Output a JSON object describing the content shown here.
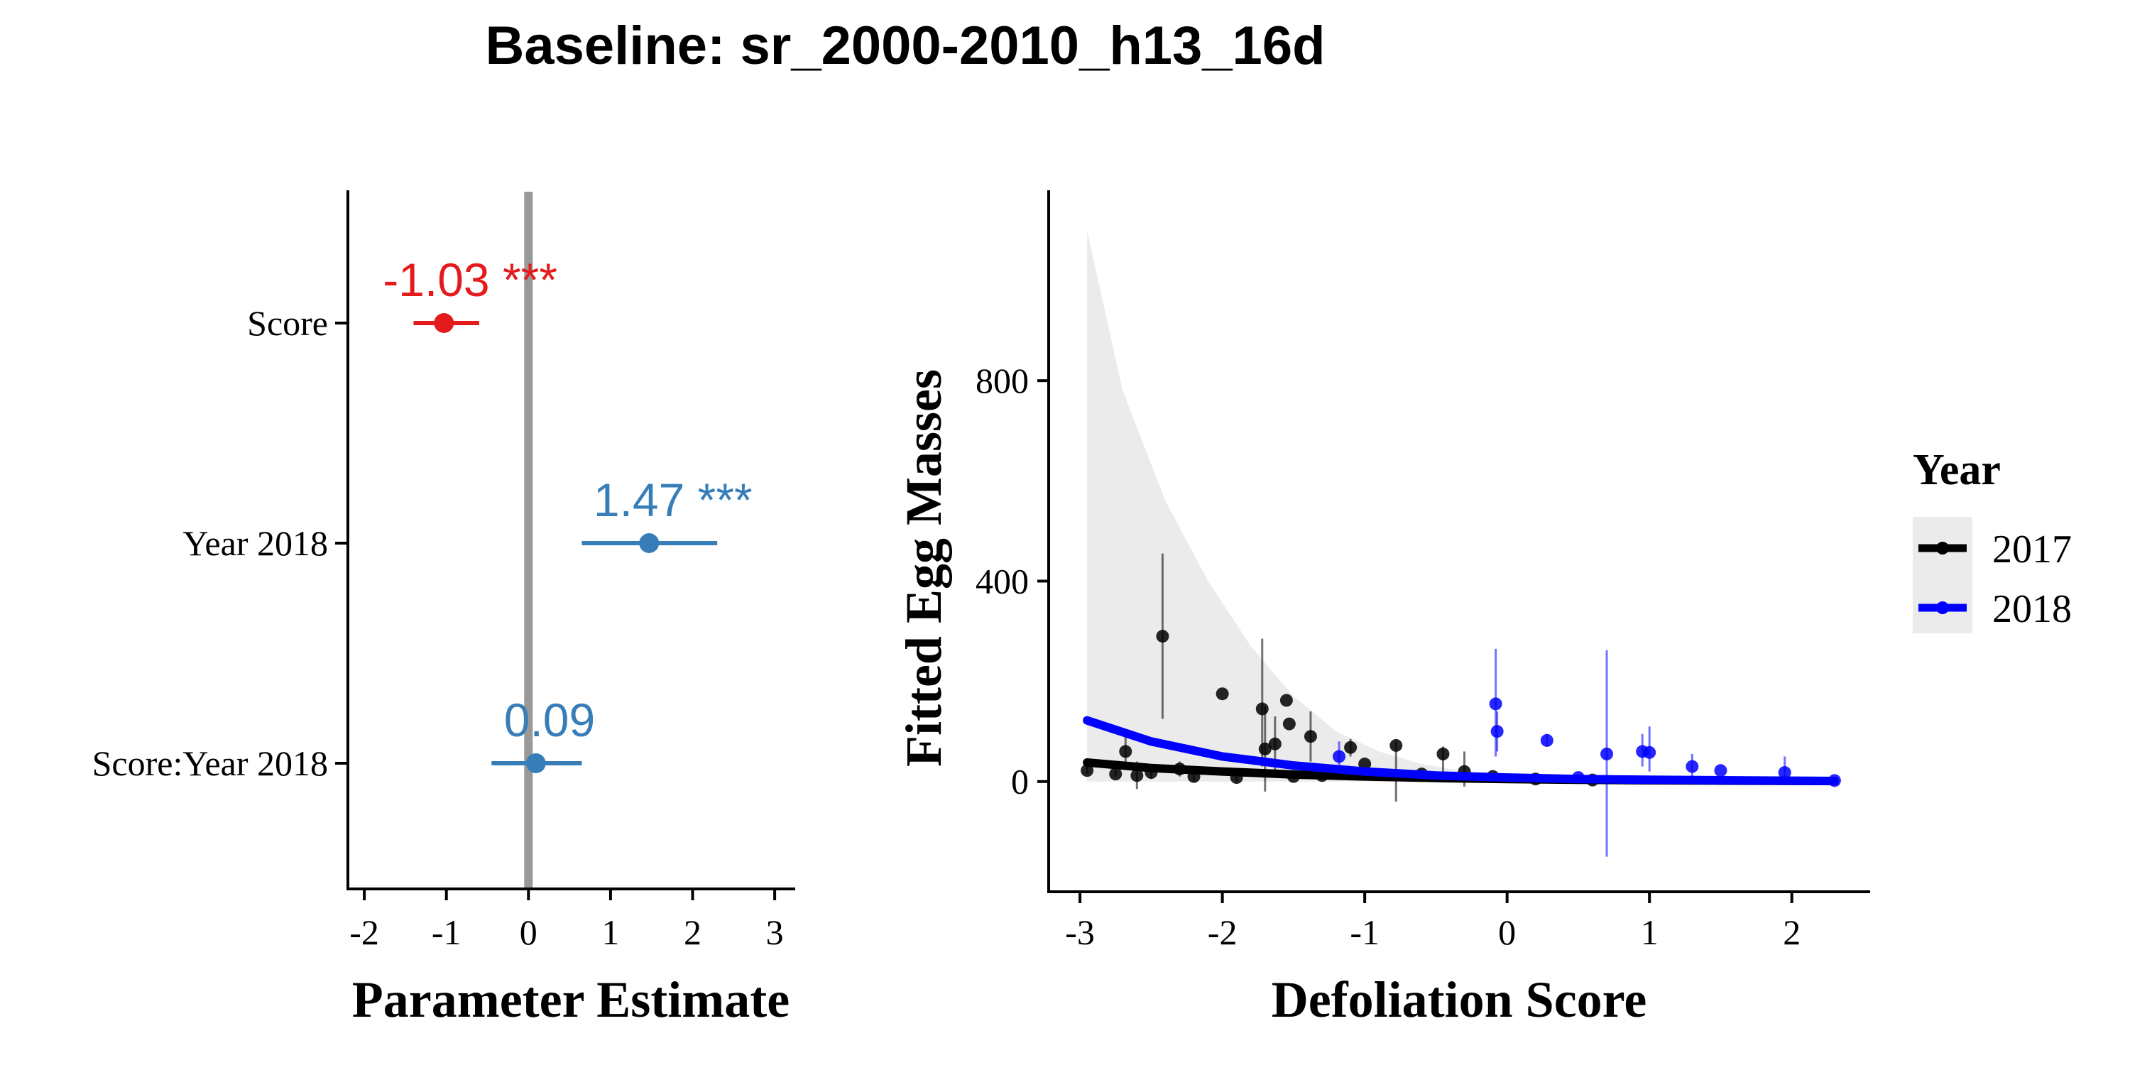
{
  "title": "Baseline: sr_2000-2010_h13_16d",
  "chart_data": [
    {
      "type": "scatter",
      "subtype": "coefficient-plot",
      "xlabel": "Parameter Estimate",
      "ylabel": "",
      "xlim": [
        -2.2,
        3.25
      ],
      "xticks": [
        -2,
        -1,
        0,
        1,
        2,
        3
      ],
      "xtick_labels": [
        "-2",
        "-1",
        "0",
        "1",
        "2",
        "3"
      ],
      "reference_line": 0,
      "reference_color": "#999999",
      "terms": [
        {
          "name": "Score",
          "estimate": -1.03,
          "ci": [
            -1.4,
            -0.6
          ],
          "label": "-1.03 ***",
          "color": "#e41a1c"
        },
        {
          "name": "Year 2018",
          "estimate": 1.47,
          "ci": [
            0.65,
            2.3
          ],
          "label": "1.47 ***",
          "color": "#377eb8"
        },
        {
          "name": "Score:Year 2018",
          "estimate": 0.09,
          "ci": [
            -0.45,
            0.65
          ],
          "label": "0.09",
          "color": "#377eb8"
        }
      ]
    },
    {
      "type": "scatter",
      "xlabel": "Defoliation Score",
      "ylabel": "Fitted Egg Masses",
      "xlim": [
        -3.22,
        2.55
      ],
      "ylim": [
        -220,
        1180
      ],
      "xticks": [
        -3,
        -2,
        -1,
        0,
        1,
        2
      ],
      "xtick_labels": [
        "-3",
        "-2",
        "-1",
        "0",
        "1",
        "2"
      ],
      "yticks": [
        0,
        400,
        800
      ],
      "ytick_labels": [
        "0",
        "400",
        "800"
      ],
      "legend": {
        "title": "Year",
        "position": "right"
      },
      "series": [
        {
          "name": "2017",
          "color": "#000000",
          "fit": {
            "x": [
              -2.95,
              -2.5,
              -2.0,
              -1.5,
              -1.0,
              -0.5,
              0.0,
              0.5,
              1.0,
              1.5,
              2.0,
              2.3
            ],
            "y": [
              38,
              27,
              20,
              14,
              10,
              7,
              5,
              3.5,
              2.5,
              1.8,
              1.2,
              1.0
            ]
          },
          "points": [
            {
              "x": -2.95,
              "y": 22,
              "lo": 15,
              "hi": 30
            },
            {
              "x": -2.75,
              "y": 15,
              "lo": 10,
              "hi": 22
            },
            {
              "x": -2.68,
              "y": 60,
              "lo": 25,
              "hi": 95
            },
            {
              "x": -2.6,
              "y": 12,
              "lo": -15,
              "hi": 40
            },
            {
              "x": -2.5,
              "y": 18,
              "lo": 5,
              "hi": 30
            },
            {
              "x": -2.42,
              "y": 290,
              "lo": 125,
              "hi": 455
            },
            {
              "x": -2.3,
              "y": 25,
              "lo": 10,
              "hi": 40
            },
            {
              "x": -2.2,
              "y": 10,
              "lo": 0,
              "hi": 20
            },
            {
              "x": -2.0,
              "y": 175
            },
            {
              "x": -1.9,
              "y": 8,
              "lo": 0,
              "hi": 15
            },
            {
              "x": -1.72,
              "y": 145,
              "lo": 30,
              "hi": 285
            },
            {
              "x": -1.7,
              "y": 65,
              "lo": -20,
              "hi": 150
            },
            {
              "x": -1.63,
              "y": 75,
              "lo": 20,
              "hi": 130
            },
            {
              "x": -1.55,
              "y": 162
            },
            {
              "x": -1.53,
              "y": 115
            },
            {
              "x": -1.5,
              "y": 10
            },
            {
              "x": -1.38,
              "y": 90,
              "lo": 40,
              "hi": 140
            },
            {
              "x": -1.3,
              "y": 12
            },
            {
              "x": -1.1,
              "y": 68,
              "lo": 50,
              "hi": 85
            },
            {
              "x": -1.0,
              "y": 35
            },
            {
              "x": -0.78,
              "y": 72,
              "lo": -40,
              "hi": 80
            },
            {
              "x": -0.6,
              "y": 15
            },
            {
              "x": -0.45,
              "y": 55,
              "lo": 20,
              "hi": 70
            },
            {
              "x": -0.3,
              "y": 20,
              "lo": -10,
              "hi": 60
            },
            {
              "x": -0.1,
              "y": 10
            },
            {
              "x": 0.2,
              "y": 5
            },
            {
              "x": 0.6,
              "y": 3
            }
          ]
        },
        {
          "name": "2018",
          "color": "#0000ff",
          "fit": {
            "x": [
              -2.95,
              -2.5,
              -2.0,
              -1.5,
              -1.0,
              -0.5,
              0.0,
              0.5,
              1.0,
              1.5,
              2.0,
              2.3
            ],
            "y": [
              122,
              80,
              50,
              32,
              20,
              12,
              8,
              5,
              3.5,
              2.5,
              1.5,
              1.0
            ]
          },
          "points": [
            {
              "x": -1.18,
              "y": 50,
              "lo": 20,
              "hi": 80
            },
            {
              "x": -0.08,
              "y": 155,
              "lo": 50,
              "hi": 265
            },
            {
              "x": -0.07,
              "y": 100,
              "lo": 60,
              "hi": 140
            },
            {
              "x": 0.28,
              "y": 82,
              "lo": 70,
              "hi": 95
            },
            {
              "x": 0.5,
              "y": 8
            },
            {
              "x": 0.7,
              "y": 55,
              "lo": -150,
              "hi": 262
            },
            {
              "x": 0.95,
              "y": 60,
              "lo": 30,
              "hi": 95
            },
            {
              "x": 1.0,
              "y": 58,
              "lo": 20,
              "hi": 110
            },
            {
              "x": 1.3,
              "y": 30,
              "lo": 10,
              "hi": 55
            },
            {
              "x": 1.5,
              "y": 22
            },
            {
              "x": 1.95,
              "y": 18,
              "lo": 5,
              "hi": 50
            },
            {
              "x": 2.3,
              "y": 2
            }
          ]
        }
      ],
      "ribbon_2017": {
        "x": [
          -2.95,
          -2.7,
          -2.4,
          -2.1,
          -1.8,
          -1.5,
          -1.2,
          -0.9,
          -0.6,
          -0.3,
          0.0,
          0.5,
          1.0,
          1.5,
          2.0,
          2.3
        ],
        "lo": [
          0,
          0,
          0,
          0,
          0,
          0,
          0,
          0,
          0,
          0,
          0,
          0,
          0,
          0,
          0,
          0
        ],
        "hi": [
          1100,
          780,
          560,
          400,
          270,
          170,
          100,
          60,
          35,
          20,
          12,
          6,
          4,
          3,
          2,
          2
        ],
        "color": "#ebebeb"
      }
    }
  ]
}
